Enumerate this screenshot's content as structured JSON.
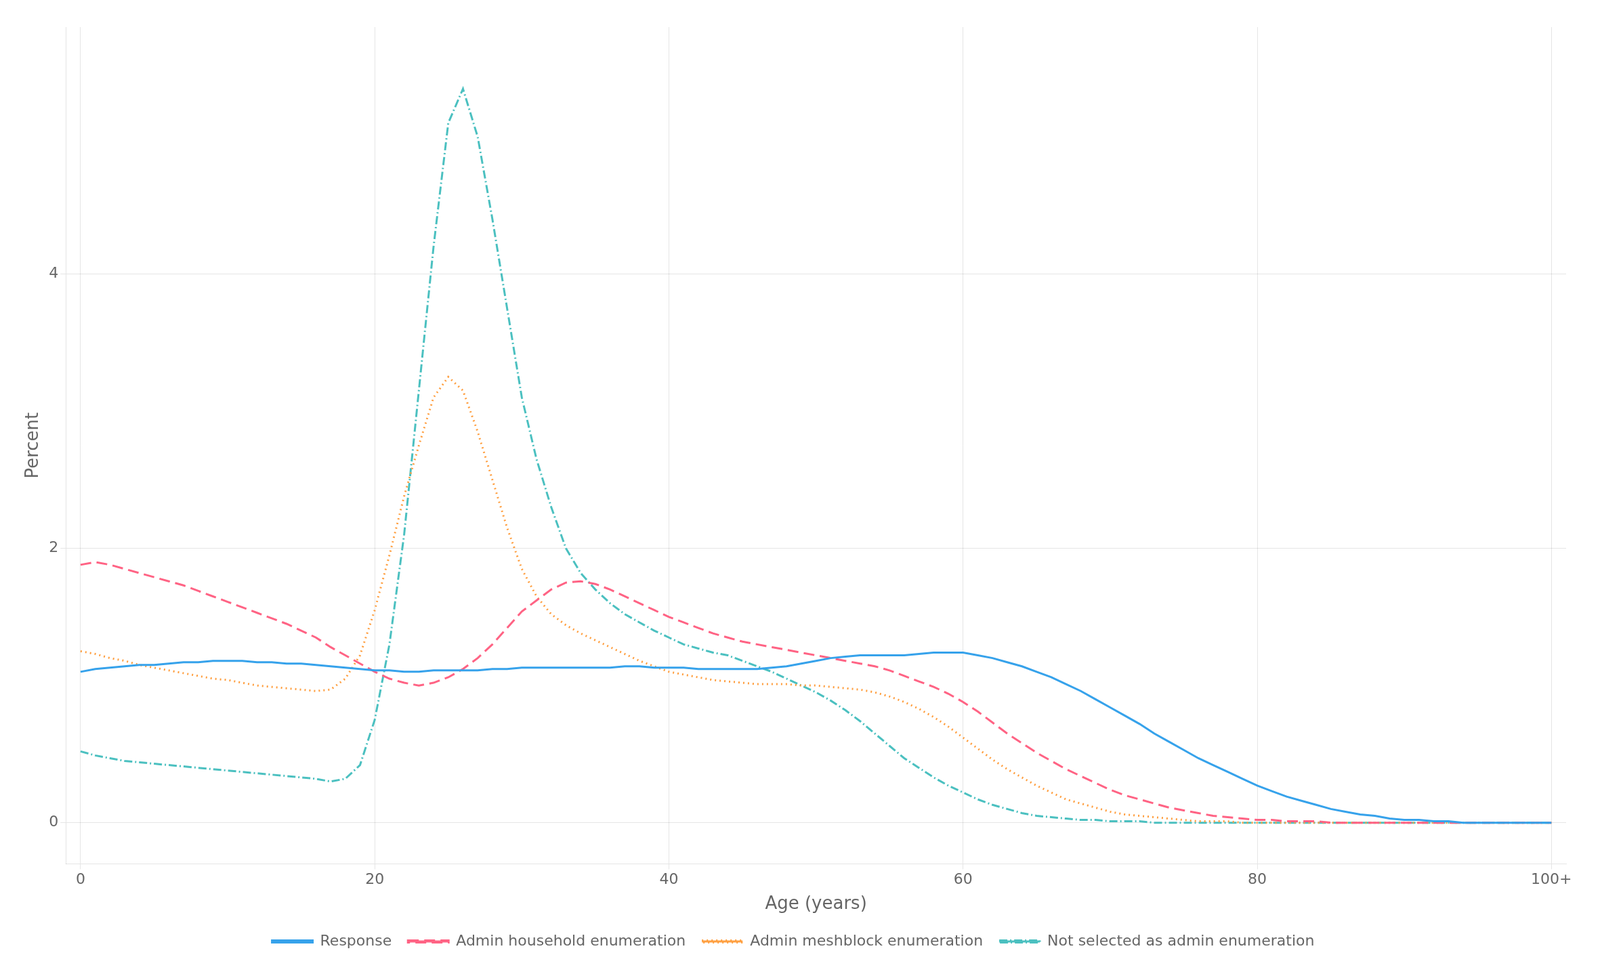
{
  "chart_data": {
    "type": "line",
    "xlabel": "Age (years)",
    "ylabel": "Percent",
    "xlim": [
      -1,
      101
    ],
    "ylim": [
      -0.3,
      5.8
    ],
    "xticks": [
      0,
      20,
      40,
      60,
      80,
      {
        "value": 100,
        "label": "100+"
      }
    ],
    "yticks": [
      0,
      2,
      4
    ],
    "grid": true,
    "legend": "bottom",
    "x": [
      0,
      1,
      2,
      3,
      4,
      5,
      6,
      7,
      8,
      9,
      10,
      11,
      12,
      13,
      14,
      15,
      16,
      17,
      18,
      19,
      20,
      21,
      22,
      23,
      24,
      25,
      26,
      27,
      28,
      29,
      30,
      31,
      32,
      33,
      34,
      35,
      36,
      37,
      38,
      39,
      40,
      41,
      42,
      43,
      44,
      45,
      46,
      47,
      48,
      49,
      50,
      51,
      52,
      53,
      54,
      55,
      56,
      57,
      58,
      59,
      60,
      61,
      62,
      63,
      64,
      65,
      66,
      67,
      68,
      69,
      70,
      71,
      72,
      73,
      74,
      75,
      76,
      77,
      78,
      79,
      80,
      81,
      82,
      83,
      84,
      85,
      86,
      87,
      88,
      89,
      90,
      91,
      92,
      93,
      94,
      95,
      96,
      97,
      98,
      99,
      100
    ],
    "series": [
      {
        "name": "Response",
        "line_style": "solid",
        "values": [
          1.1,
          1.12,
          1.13,
          1.14,
          1.15,
          1.15,
          1.16,
          1.17,
          1.17,
          1.18,
          1.18,
          1.18,
          1.17,
          1.17,
          1.16,
          1.16,
          1.15,
          1.14,
          1.13,
          1.12,
          1.11,
          1.11,
          1.1,
          1.1,
          1.11,
          1.11,
          1.11,
          1.11,
          1.12,
          1.12,
          1.13,
          1.13,
          1.13,
          1.13,
          1.13,
          1.13,
          1.13,
          1.14,
          1.14,
          1.13,
          1.13,
          1.13,
          1.12,
          1.12,
          1.12,
          1.12,
          1.12,
          1.13,
          1.14,
          1.16,
          1.18,
          1.2,
          1.21,
          1.22,
          1.22,
          1.22,
          1.22,
          1.23,
          1.24,
          1.24,
          1.24,
          1.22,
          1.2,
          1.17,
          1.14,
          1.1,
          1.06,
          1.01,
          0.96,
          0.9,
          0.84,
          0.78,
          0.72,
          0.65,
          0.59,
          0.53,
          0.47,
          0.42,
          0.37,
          0.32,
          0.27,
          0.23,
          0.19,
          0.16,
          0.13,
          0.1,
          0.08,
          0.06,
          0.05,
          0.03,
          0.02,
          0.02,
          0.01,
          0.01,
          0.0,
          0.0,
          0.0,
          0.0,
          0.0,
          0.0,
          0.0
        ]
      },
      {
        "name": "Admin household enumeration",
        "line_style": "dashed",
        "values": [
          1.88,
          1.9,
          1.88,
          1.85,
          1.82,
          1.79,
          1.76,
          1.73,
          1.69,
          1.65,
          1.61,
          1.57,
          1.53,
          1.49,
          1.45,
          1.4,
          1.35,
          1.28,
          1.22,
          1.16,
          1.1,
          1.05,
          1.02,
          1.0,
          1.02,
          1.06,
          1.12,
          1.2,
          1.3,
          1.42,
          1.54,
          1.62,
          1.7,
          1.75,
          1.76,
          1.74,
          1.7,
          1.65,
          1.6,
          1.55,
          1.5,
          1.46,
          1.42,
          1.38,
          1.35,
          1.32,
          1.3,
          1.28,
          1.26,
          1.24,
          1.22,
          1.2,
          1.18,
          1.16,
          1.14,
          1.11,
          1.07,
          1.03,
          0.99,
          0.94,
          0.88,
          0.81,
          0.73,
          0.65,
          0.58,
          0.51,
          0.45,
          0.39,
          0.34,
          0.29,
          0.24,
          0.2,
          0.17,
          0.14,
          0.11,
          0.09,
          0.07,
          0.05,
          0.04,
          0.03,
          0.02,
          0.02,
          0.01,
          0.01,
          0.01,
          0.0,
          0.0,
          0.0,
          0.0,
          0.0,
          0.0,
          0.0,
          0.0,
          0.0,
          0.0,
          0.0,
          0.0,
          0.0,
          0.0,
          0.0,
          0.0
        ]
      },
      {
        "name": "Admin meshblock enumeration",
        "line_style": "dotted",
        "values": [
          1.25,
          1.23,
          1.2,
          1.18,
          1.15,
          1.13,
          1.11,
          1.09,
          1.07,
          1.05,
          1.04,
          1.02,
          1.0,
          0.99,
          0.98,
          0.97,
          0.96,
          0.97,
          1.05,
          1.22,
          1.55,
          1.95,
          2.38,
          2.75,
          3.1,
          3.25,
          3.15,
          2.85,
          2.5,
          2.15,
          1.85,
          1.65,
          1.52,
          1.44,
          1.38,
          1.33,
          1.28,
          1.23,
          1.18,
          1.14,
          1.1,
          1.08,
          1.06,
          1.04,
          1.03,
          1.02,
          1.01,
          1.01,
          1.01,
          1.0,
          1.0,
          0.99,
          0.98,
          0.97,
          0.95,
          0.92,
          0.88,
          0.83,
          0.77,
          0.7,
          0.62,
          0.54,
          0.46,
          0.39,
          0.33,
          0.27,
          0.22,
          0.17,
          0.14,
          0.11,
          0.08,
          0.06,
          0.05,
          0.04,
          0.03,
          0.02,
          0.01,
          0.01,
          0.01,
          0.0,
          0.0,
          0.0,
          0.0,
          0.0,
          0.0,
          0.0,
          0.0,
          0.0,
          0.0,
          0.0,
          0.0,
          0.0,
          0.0,
          0.0,
          0.0,
          0.0,
          0.0,
          0.0,
          0.0,
          0.0,
          0.0
        ]
      },
      {
        "name": "Not selected as admin enumeration",
        "line_style": "dashdot",
        "values": [
          0.52,
          0.49,
          0.47,
          0.45,
          0.44,
          0.43,
          0.42,
          0.41,
          0.4,
          0.39,
          0.38,
          0.37,
          0.36,
          0.35,
          0.34,
          0.33,
          0.32,
          0.3,
          0.32,
          0.42,
          0.75,
          1.3,
          2.1,
          3.15,
          4.2,
          5.1,
          5.35,
          5.0,
          4.4,
          3.75,
          3.1,
          2.65,
          2.3,
          2.0,
          1.82,
          1.7,
          1.6,
          1.52,
          1.46,
          1.4,
          1.35,
          1.3,
          1.27,
          1.24,
          1.22,
          1.18,
          1.14,
          1.1,
          1.05,
          1.0,
          0.95,
          0.89,
          0.82,
          0.74,
          0.65,
          0.56,
          0.47,
          0.4,
          0.33,
          0.27,
          0.22,
          0.17,
          0.13,
          0.1,
          0.07,
          0.05,
          0.04,
          0.03,
          0.02,
          0.02,
          0.01,
          0.01,
          0.01,
          0.0,
          0.0,
          0.0,
          0.0,
          0.0,
          0.0,
          0.0,
          0.0,
          0.0,
          0.0,
          0.0,
          0.0,
          0.0,
          0.0,
          0.0,
          0.0,
          0.0,
          0.0,
          0.0,
          0.0,
          0.0,
          0.0,
          0.0,
          0.0,
          0.0,
          0.0,
          0.0,
          0.0
        ]
      }
    ]
  }
}
